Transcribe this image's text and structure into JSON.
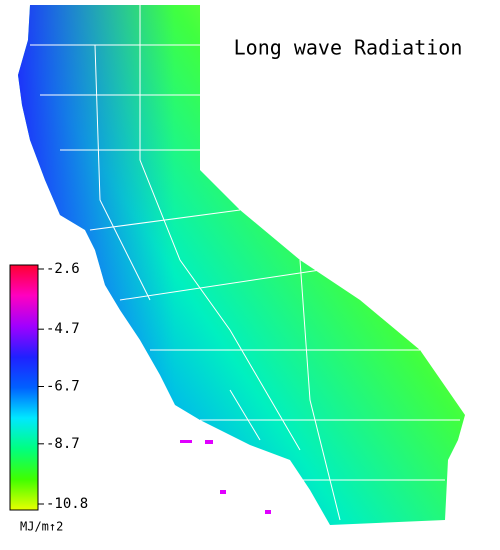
{
  "map": {
    "title": "Long wave Radiation",
    "colorbar": {
      "lim": [
        -10.8,
        -2.6
      ],
      "ticks": [
        -2.6,
        -4.7,
        -6.7,
        -8.7,
        -10.8
      ],
      "colors": [
        "#e8ff00",
        "#40ff00",
        "#00ff80",
        "#00e8ff",
        "#0060ff",
        "#2020ff",
        "#a000ff",
        "#ff00c0",
        "#ff0030"
      ],
      "unit": "MJ/m↑2"
    }
  }
}
